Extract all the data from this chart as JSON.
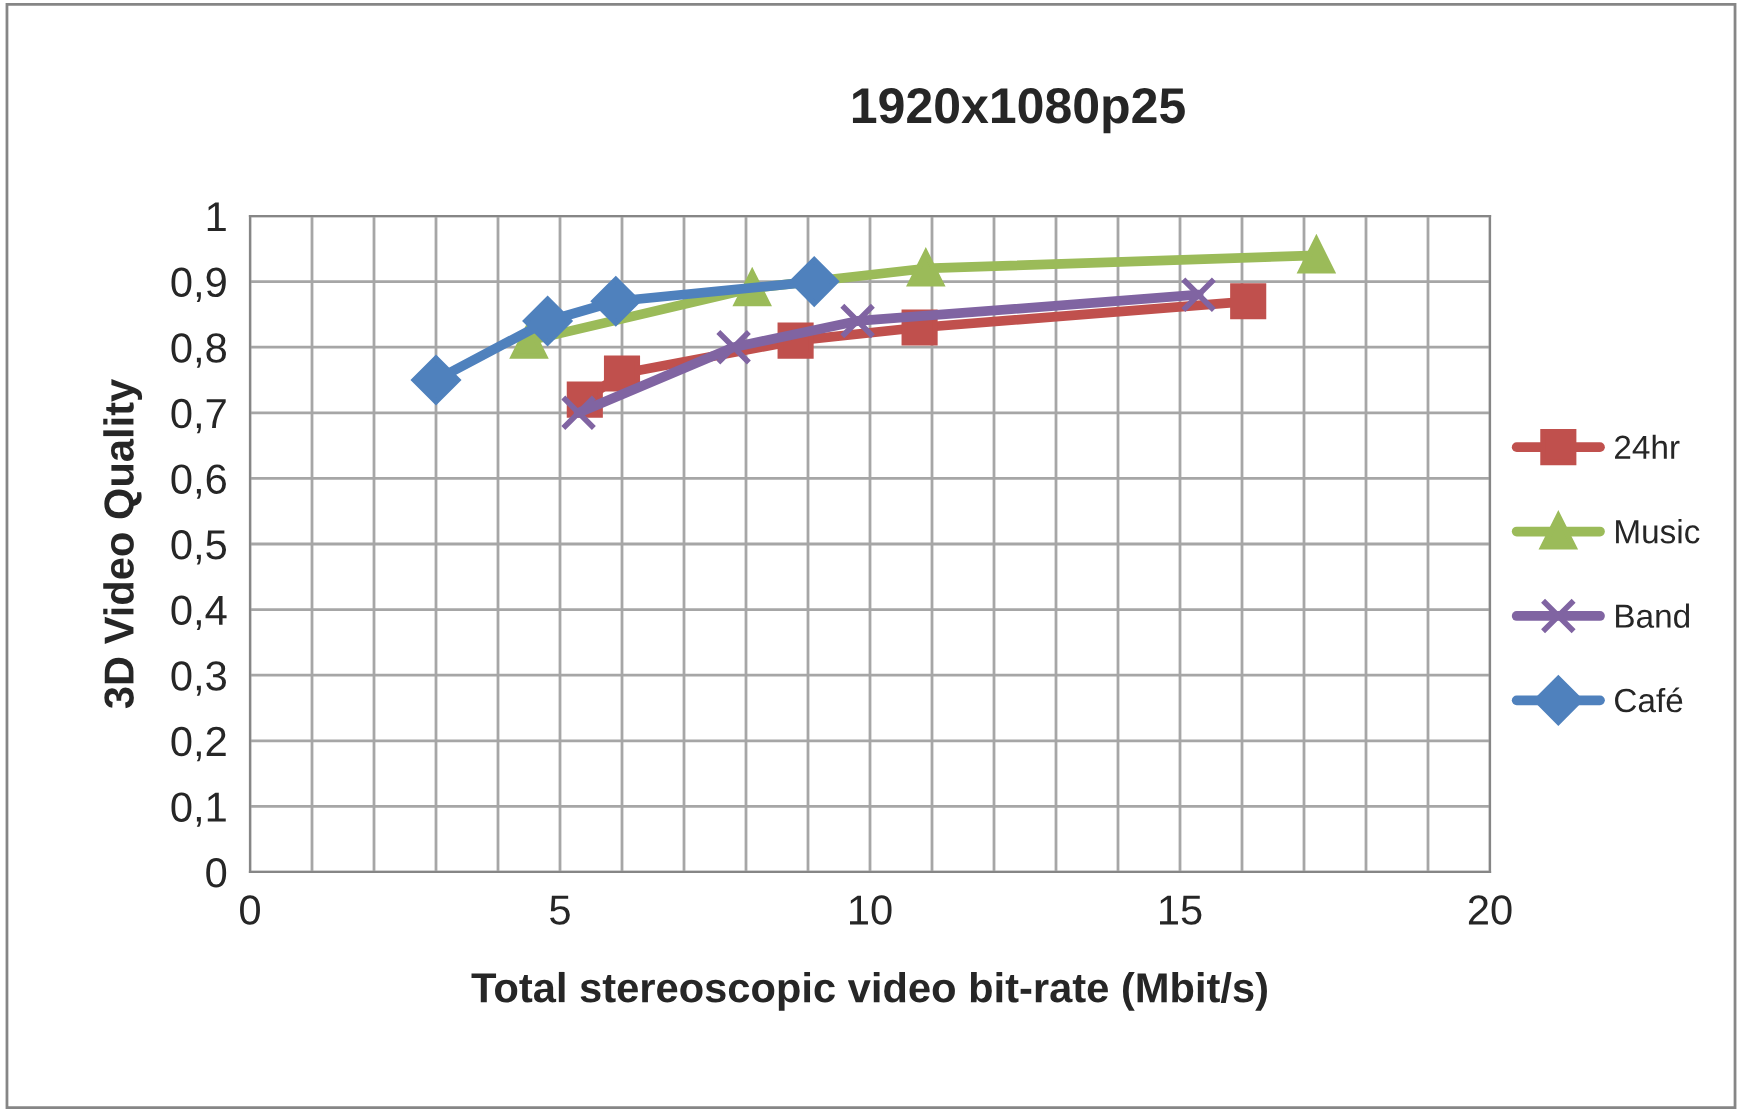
{
  "chart_data": {
    "type": "line",
    "title": "1920x1080p25",
    "xlabel": "Total stereoscopic video bit-rate (Mbit/s)",
    "ylabel": "3D Video Quality",
    "xlim": [
      0,
      20
    ],
    "ylim": [
      0,
      1
    ],
    "xticks": [
      0,
      {
        "value": 1,
        "label": null
      },
      {
        "value": 2,
        "label": null
      },
      {
        "value": 3,
        "label": null
      },
      {
        "value": 4,
        "label": null
      },
      5,
      {
        "value": 6,
        "label": null
      },
      {
        "value": 7,
        "label": null
      },
      {
        "value": 8,
        "label": null
      },
      {
        "value": 9,
        "label": null
      },
      10,
      {
        "value": 11,
        "label": null
      },
      {
        "value": 12,
        "label": null
      },
      {
        "value": 13,
        "label": null
      },
      {
        "value": 14,
        "label": null
      },
      15,
      {
        "value": 16,
        "label": null
      },
      {
        "value": 17,
        "label": null
      },
      {
        "value": 18,
        "label": null
      },
      {
        "value": 19,
        "label": null
      },
      20
    ],
    "yticks": [
      0,
      {
        "value": 0.1,
        "label": "0,1"
      },
      {
        "value": 0.2,
        "label": "0,2"
      },
      {
        "value": 0.3,
        "label": "0,3"
      },
      {
        "value": 0.4,
        "label": "0,4"
      },
      {
        "value": 0.5,
        "label": "0,5"
      },
      {
        "value": 0.6,
        "label": "0,6"
      },
      {
        "value": 0.7,
        "label": "0,7"
      },
      {
        "value": 0.8,
        "label": "0,8"
      },
      {
        "value": 0.9,
        "label": "0,9"
      },
      1
    ],
    "grid": true,
    "legend": "right",
    "series": [
      {
        "name": "24hr",
        "color": "#c0504d",
        "marker": "square",
        "x": [
          5.4,
          6.0,
          8.8,
          10.8,
          16.1
        ],
        "values": [
          0.72,
          0.76,
          0.81,
          0.83,
          0.87
        ]
      },
      {
        "name": "Music",
        "color": "#9bbb59",
        "marker": "triangle",
        "x": [
          4.5,
          8.1,
          10.9,
          17.2
        ],
        "values": [
          0.81,
          0.89,
          0.92,
          0.94
        ]
      },
      {
        "name": "Band",
        "color": "#8064a2",
        "marker": "cross",
        "x": [
          5.3,
          7.8,
          9.8,
          15.3
        ],
        "values": [
          0.7,
          0.8,
          0.84,
          0.88
        ]
      },
      {
        "name": "Café",
        "color": "#4f81bd",
        "marker": "diamond",
        "x": [
          3.0,
          4.8,
          5.9,
          9.1
        ],
        "values": [
          0.75,
          0.84,
          0.87,
          0.9
        ]
      }
    ]
  }
}
